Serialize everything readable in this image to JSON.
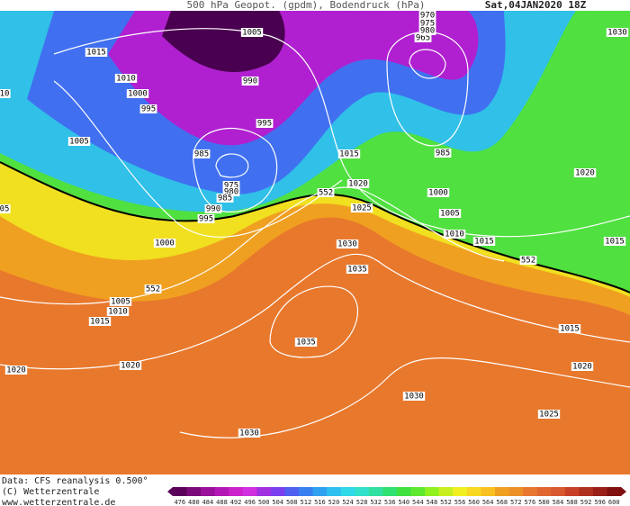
{
  "header": {
    "title": "500 hPa Geopot. (gpdm), Bodendruck (hPa)",
    "date": "Sat,04JAN2020 18Z"
  },
  "isobar_labels": [
    "1005",
    "1015",
    "1010",
    "1000",
    "995",
    "1005",
    "990",
    "995",
    "985",
    "975",
    "980",
    "985",
    "990",
    "995",
    "1000",
    "1015",
    "1020",
    "1025",
    "1030",
    "1035",
    "1035",
    "1005",
    "1010",
    "1015",
    "1020",
    "1020",
    "1030",
    "1030",
    "1025",
    "1020",
    "1015",
    "1015",
    "1010",
    "1005",
    "1000",
    "985",
    "965",
    "970",
    "975",
    "980",
    "1020",
    "1015",
    "1030",
    "10",
    "05"
  ],
  "geopotential_labels": [
    "552",
    "552",
    "552"
  ],
  "footer": {
    "source": "Data: CFS reanalysis 0.500°",
    "copyright": "(C) Wetterzentrale",
    "url": "www.wetterzentrale.de"
  },
  "scale": {
    "values": [
      476,
      480,
      484,
      488,
      492,
      496,
      500,
      504,
      508,
      512,
      516,
      520,
      524,
      528,
      532,
      536,
      540,
      544,
      548,
      552,
      556,
      560,
      564,
      568,
      572,
      576,
      580,
      584,
      588,
      592,
      596,
      600
    ],
    "colors": [
      "#5a005a",
      "#7a0a7a",
      "#9a109a",
      "#b418b4",
      "#cc22cc",
      "#d030e0",
      "#a030e0",
      "#7a40f0",
      "#5060f0",
      "#3880f0",
      "#30a0f0",
      "#30c0f0",
      "#30d8e8",
      "#30e0c8",
      "#30e0a0",
      "#30e070",
      "#40e040",
      "#60e830",
      "#90f020",
      "#c8f020",
      "#f0f020",
      "#f8d820",
      "#f8c020",
      "#f0a020",
      "#ec9028",
      "#e87830",
      "#e06830",
      "#d85830",
      "#c84028",
      "#b03020",
      "#982018",
      "#801010"
    ]
  }
}
